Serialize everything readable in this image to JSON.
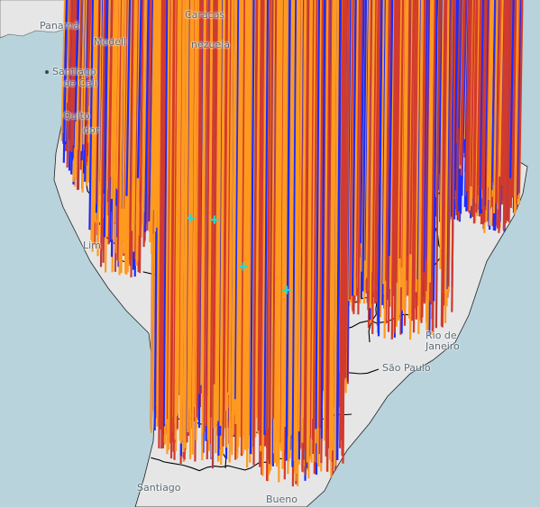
{
  "map": {
    "labels": {
      "panama": "Panamá",
      "medellin": "Medell",
      "caracas": "Caracas",
      "venezuela": "nezuela",
      "santiago": "Santiago",
      "de_cali": "de Cali",
      "quito": "Quito",
      "ecuador": "dor",
      "lima": "Lim",
      "rio": "Rio de",
      "janeiro": "Janeiro",
      "sao_paulo": "São Paulo",
      "santiago_cl": "Santiago",
      "buenos": "Bueno"
    },
    "colors": {
      "ocean": "#b8d3dc",
      "land": "#e6e6e6",
      "border": "#000000",
      "marker_blue": "#1b2cff",
      "marker_orange": "#ff9a1f",
      "marker_red": "#d23a2e",
      "marker_darkred": "#b33c3c",
      "marker_cyan": "#27d9d0"
    }
  }
}
